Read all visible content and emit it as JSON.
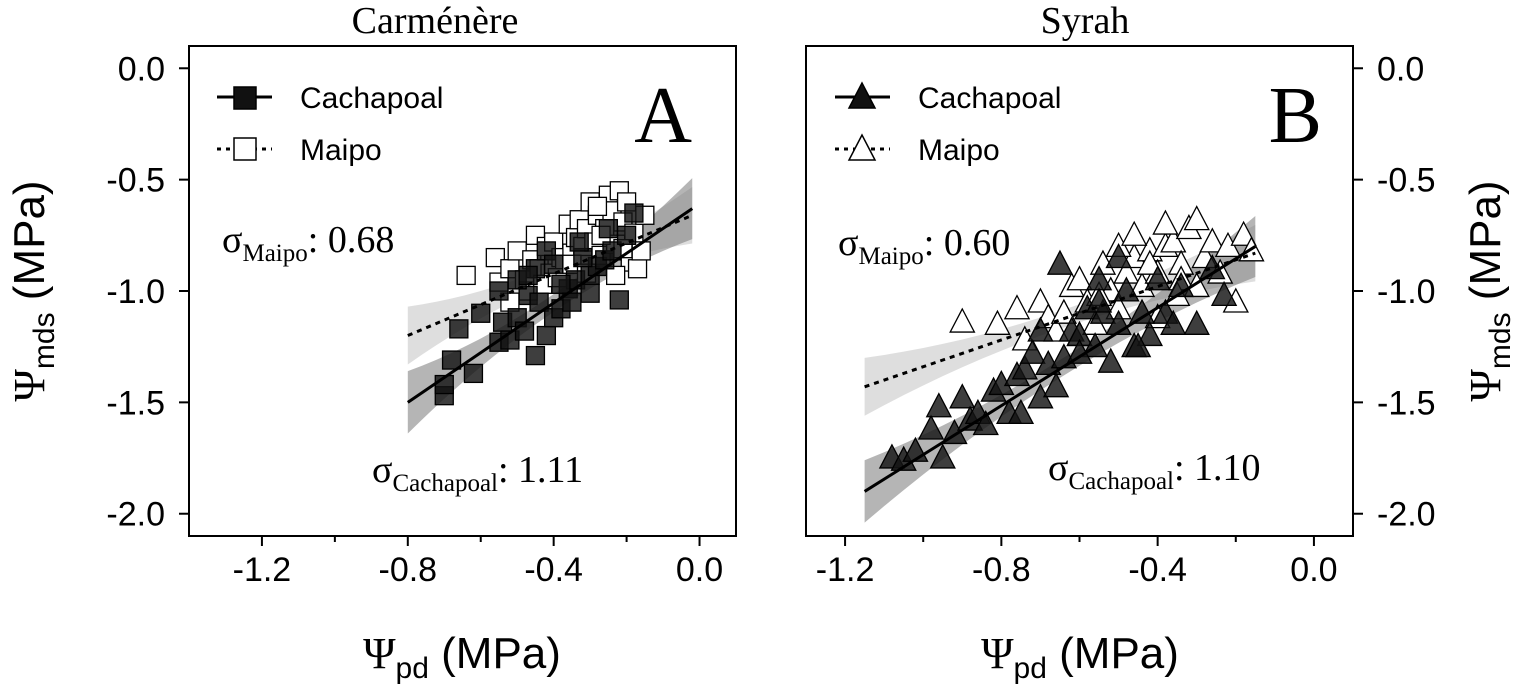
{
  "chart_data": [
    {
      "type": "scatter",
      "title": "Carménère",
      "panel_label": "A",
      "xlabel_main": "Ψ",
      "xlabel_sub": "pd",
      "xlabel_unit": " (MPa)",
      "ylabel_main": "Ψ",
      "ylabel_sub": "mds",
      "ylabel_unit": " (MPa)",
      "xlim": [
        -1.4,
        0.1
      ],
      "ylim": [
        -2.1,
        0.1
      ],
      "xticks": [
        -1.2,
        -0.8,
        -0.4,
        0.0
      ],
      "xtick_labels": [
        "-1.2",
        "-0.8",
        "-0.4",
        "0.0"
      ],
      "yticks": [
        0.0,
        -0.5,
        -1.0,
        -1.5,
        -2.0
      ],
      "ytick_labels": [
        "0.0",
        "-0.5",
        "-1.0",
        "-1.5",
        "-2.0"
      ],
      "legend": [
        {
          "name": "Cachapoal",
          "marker": "filled-square",
          "line": "solid"
        },
        {
          "name": "Maipo",
          "marker": "open-square",
          "line": "dotted"
        }
      ],
      "annotations": [
        {
          "symbol": "σ",
          "sub": "Maipo",
          "text": ": 0.68"
        },
        {
          "symbol": "σ",
          "sub": "Cachapoal",
          "text": ": 1.11"
        }
      ],
      "series": [
        {
          "name": "Cachapoal",
          "marker": "filled-square",
          "fit": {
            "x": [
              -0.8,
              -0.02
            ],
            "y": [
              -1.5,
              -0.63
            ]
          },
          "x": [
            -0.7,
            -0.7,
            -0.68,
            -0.66,
            -0.62,
            -0.6,
            -0.55,
            -0.54,
            -0.52,
            -0.5,
            -0.48,
            -0.47,
            -0.45,
            -0.44,
            -0.42,
            -0.4,
            -0.38,
            -0.36,
            -0.34,
            -0.3,
            -0.28,
            -0.26,
            -0.24,
            -0.22,
            -0.2,
            -0.18,
            -0.45,
            -0.42,
            -0.38,
            -0.35,
            -0.32,
            -0.3,
            -0.5,
            -0.55,
            -0.47,
            -0.4,
            -0.33,
            -0.25
          ],
          "y": [
            -1.47,
            -1.42,
            -1.31,
            -1.17,
            -1.37,
            -1.1,
            -1.23,
            -1.14,
            -1.22,
            -1.12,
            -1.18,
            -1.02,
            -1.29,
            -1.05,
            -1.2,
            -1.12,
            -1.08,
            -0.99,
            -0.95,
            -0.93,
            -0.89,
            -0.86,
            -0.82,
            -1.04,
            -0.75,
            -0.65,
            -0.9,
            -0.82,
            -0.97,
            -1.05,
            -0.85,
            -1.01,
            -0.95,
            -1.0,
            -0.93,
            -0.88,
            -0.78,
            -0.72
          ]
        },
        {
          "name": "Maipo",
          "marker": "open-square",
          "fit": {
            "x": [
              -0.8,
              -0.02
            ],
            "y": [
              -1.2,
              -0.66
            ]
          },
          "x": [
            -0.64,
            -0.56,
            -0.55,
            -0.52,
            -0.5,
            -0.48,
            -0.46,
            -0.45,
            -0.44,
            -0.42,
            -0.41,
            -0.4,
            -0.38,
            -0.37,
            -0.36,
            -0.35,
            -0.34,
            -0.33,
            -0.32,
            -0.31,
            -0.3,
            -0.29,
            -0.28,
            -0.27,
            -0.26,
            -0.25,
            -0.24,
            -0.23,
            -0.22,
            -0.21,
            -0.2,
            -0.19,
            -0.18,
            -0.17,
            -0.16,
            -0.15,
            -0.52,
            -0.47,
            -0.43,
            -0.39,
            -0.35,
            -0.31,
            -0.27,
            -0.23,
            -0.21,
            -0.28
          ],
          "y": [
            -0.93,
            -0.85,
            -0.96,
            -0.9,
            -0.82,
            -0.95,
            -0.86,
            -0.75,
            -0.9,
            -0.8,
            -0.92,
            -0.78,
            -0.85,
            -0.88,
            -0.7,
            -0.83,
            -0.76,
            -0.68,
            -0.8,
            -0.72,
            -0.6,
            -0.78,
            -0.66,
            -0.84,
            -0.72,
            -0.57,
            -0.64,
            -0.79,
            -0.55,
            -0.69,
            -0.6,
            -0.87,
            -0.74,
            -0.9,
            -0.82,
            -0.66,
            -1.05,
            -1.0,
            -0.97,
            -0.94,
            -0.88,
            -0.92,
            -0.75,
            -0.93,
            -0.81,
            -0.62
          ]
        }
      ]
    },
    {
      "type": "scatter",
      "title": "Syrah",
      "panel_label": "B",
      "xlabel_main": "Ψ",
      "xlabel_sub": "pd",
      "xlabel_unit": " (MPa)",
      "ylabel_main": "Ψ",
      "ylabel_sub": "mds",
      "ylabel_unit": " (MPa)",
      "xlim": [
        -1.3,
        0.1
      ],
      "ylim": [
        -2.1,
        0.1
      ],
      "xticks": [
        -1.2,
        -0.8,
        -0.4,
        0.0
      ],
      "xtick_labels": [
        "-1.2",
        "-0.8",
        "-0.4",
        "0.0"
      ],
      "yticks": [
        0.0,
        -0.5,
        -1.0,
        -1.5,
        -2.0
      ],
      "ytick_labels": [
        "0.0",
        "-0.5",
        "-1.0",
        "-1.5",
        "-2.0"
      ],
      "legend": [
        {
          "name": "Cachapoal",
          "marker": "filled-triangle",
          "line": "solid"
        },
        {
          "name": "Maipo",
          "marker": "open-triangle",
          "line": "dotted"
        }
      ],
      "annotations": [
        {
          "symbol": "σ",
          "sub": "Maipo",
          "text": ": 0.60"
        },
        {
          "symbol": "σ",
          "sub": "Cachapoal",
          "text": ": 1.10"
        }
      ],
      "series": [
        {
          "name": "Cachapoal",
          "marker": "filled-triangle",
          "fit": {
            "x": [
              -1.15,
              -0.15
            ],
            "y": [
              -1.9,
              -0.8
            ]
          },
          "x": [
            -1.08,
            -1.05,
            -1.02,
            -0.98,
            -0.96,
            -0.95,
            -0.92,
            -0.9,
            -0.88,
            -0.86,
            -0.84,
            -0.82,
            -0.8,
            -0.78,
            -0.76,
            -0.75,
            -0.74,
            -0.72,
            -0.7,
            -0.68,
            -0.66,
            -0.64,
            -0.62,
            -0.6,
            -0.58,
            -0.56,
            -0.55,
            -0.54,
            -0.52,
            -0.5,
            -0.48,
            -0.46,
            -0.44,
            -0.42,
            -0.4,
            -0.38,
            -0.36,
            -0.34,
            -0.3,
            -0.26,
            -0.23,
            -0.6,
            -0.55,
            -0.5,
            -0.45,
            -0.65,
            -0.7
          ],
          "y": [
            -1.75,
            -1.76,
            -1.72,
            -1.62,
            -1.52,
            -1.75,
            -1.64,
            -1.48,
            -1.58,
            -1.55,
            -1.6,
            -1.45,
            -1.42,
            -1.55,
            -1.38,
            -1.55,
            -1.35,
            -1.28,
            -1.48,
            -1.33,
            -1.43,
            -1.3,
            -1.18,
            -1.2,
            -1.08,
            -1.25,
            -0.95,
            -1.1,
            -1.32,
            -1.15,
            -1.0,
            -1.25,
            -1.1,
            -1.2,
            -0.95,
            -1.1,
            -1.15,
            -0.98,
            -1.15,
            -0.9,
            -1.02,
            -1.28,
            -1.05,
            -0.85,
            -1.25,
            -0.88,
            -1.18
          ]
        },
        {
          "name": "Maipo",
          "marker": "open-triangle",
          "fit": {
            "x": [
              -1.15,
              -0.15
            ],
            "y": [
              -1.43,
              -0.83
            ]
          },
          "x": [
            -0.9,
            -0.81,
            -0.76,
            -0.74,
            -0.7,
            -0.68,
            -0.66,
            -0.64,
            -0.62,
            -0.6,
            -0.58,
            -0.56,
            -0.54,
            -0.52,
            -0.5,
            -0.48,
            -0.46,
            -0.44,
            -0.42,
            -0.4,
            -0.38,
            -0.36,
            -0.34,
            -0.32,
            -0.3,
            -0.28,
            -0.26,
            -0.24,
            -0.22,
            -0.2,
            -0.18,
            -0.16,
            -0.5,
            -0.46,
            -0.42,
            -0.38,
            -0.34,
            -0.3,
            -0.6,
            -0.55,
            -0.4,
            -0.35
          ],
          "y": [
            -1.14,
            -1.15,
            -1.08,
            -1.22,
            -1.05,
            -1.12,
            -1.18,
            -1.1,
            -0.98,
            -1.2,
            -1.05,
            -1.15,
            -0.88,
            -1.0,
            -1.08,
            -0.92,
            -0.85,
            -0.98,
            -0.82,
            -0.92,
            -0.8,
            -0.78,
            -0.88,
            -0.72,
            -0.68,
            -0.85,
            -0.78,
            -0.92,
            -0.8,
            -1.05,
            -0.75,
            -0.82,
            -0.8,
            -0.75,
            -0.88,
            -0.7,
            -0.95,
            -0.98,
            -0.95,
            -1.02,
            -1.12,
            -1.02
          ]
        }
      ]
    }
  ]
}
